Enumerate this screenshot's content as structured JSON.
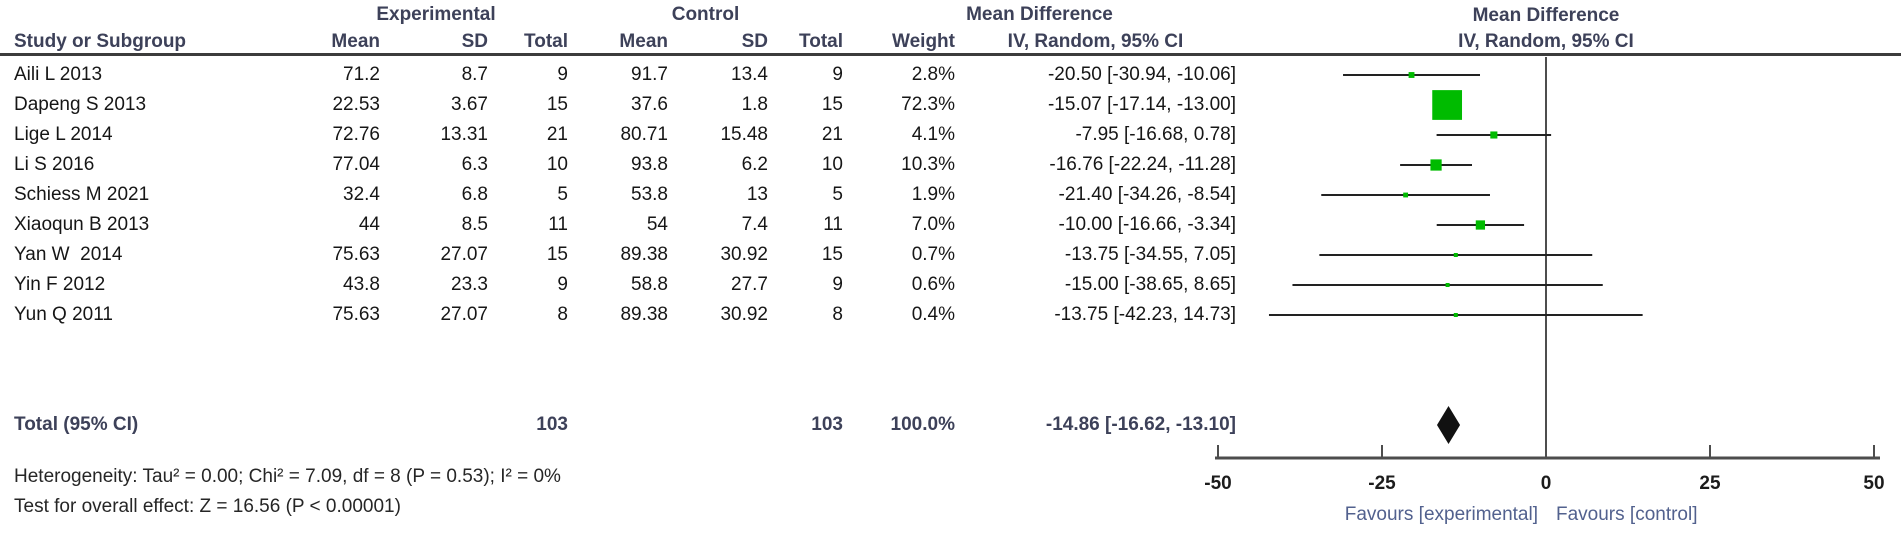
{
  "header": {
    "study_col": "Study or Subgroup",
    "group_experimental": "Experimental",
    "group_control": "Control",
    "col_mean": "Mean",
    "col_sd": "SD",
    "col_total": "Total",
    "col_weight": "Weight",
    "effect_title": "Mean Difference",
    "effect_method": "IV, Random, 95% CI"
  },
  "chart_data": {
    "type": "forest",
    "effect_measure": "Mean Difference",
    "model": "IV, Random, 95% CI",
    "marker_color": "#00bb00",
    "diamond_color": "#111111",
    "x_axis": {
      "min": -50,
      "max": 50,
      "ticks": [
        -50,
        -25,
        0,
        25,
        50
      ],
      "zero_line": 0
    },
    "favours_left": "Favours [experimental]",
    "favours_right": "Favours [control]",
    "studies": [
      {
        "study": "Aili L 2013",
        "exp_mean": "71.2",
        "exp_sd": "8.7",
        "exp_total": "9",
        "ctl_mean": "91.7",
        "ctl_sd": "13.4",
        "ctl_total": "9",
        "weight": 2.8,
        "weight_text": "2.8%",
        "md": -20.5,
        "ci_low": -30.94,
        "ci_high": -10.06,
        "ci_text": "-20.50 [-30.94, -10.06]"
      },
      {
        "study": "Dapeng S 2013",
        "exp_mean": "22.53",
        "exp_sd": "3.67",
        "exp_total": "15",
        "ctl_mean": "37.6",
        "ctl_sd": "1.8",
        "ctl_total": "15",
        "weight": 72.3,
        "weight_text": "72.3%",
        "md": -15.07,
        "ci_low": -17.14,
        "ci_high": -13.0,
        "ci_text": "-15.07 [-17.14, -13.00]"
      },
      {
        "study": "Lige L 2014",
        "exp_mean": "72.76",
        "exp_sd": "13.31",
        "exp_total": "21",
        "ctl_mean": "80.71",
        "ctl_sd": "15.48",
        "ctl_total": "21",
        "weight": 4.1,
        "weight_text": "4.1%",
        "md": -7.95,
        "ci_low": -16.68,
        "ci_high": 0.78,
        "ci_text": "-7.95 [-16.68, 0.78]"
      },
      {
        "study": "Li S 2016",
        "exp_mean": "77.04",
        "exp_sd": "6.3",
        "exp_total": "10",
        "ctl_mean": "93.8",
        "ctl_sd": "6.2",
        "ctl_total": "10",
        "weight": 10.3,
        "weight_text": "10.3%",
        "md": -16.76,
        "ci_low": -22.24,
        "ci_high": -11.28,
        "ci_text": "-16.76 [-22.24, -11.28]"
      },
      {
        "study": "Schiess M 2021",
        "exp_mean": "32.4",
        "exp_sd": "6.8",
        "exp_total": "5",
        "ctl_mean": "53.8",
        "ctl_sd": "13",
        "ctl_total": "5",
        "weight": 1.9,
        "weight_text": "1.9%",
        "md": -21.4,
        "ci_low": -34.26,
        "ci_high": -8.54,
        "ci_text": "-21.40 [-34.26, -8.54]"
      },
      {
        "study": "Xiaoqun B 2013",
        "exp_mean": "44",
        "exp_sd": "8.5",
        "exp_total": "11",
        "ctl_mean": "54",
        "ctl_sd": "7.4",
        "ctl_total": "11",
        "weight": 7.0,
        "weight_text": "7.0%",
        "md": -10.0,
        "ci_low": -16.66,
        "ci_high": -3.34,
        "ci_text": "-10.00 [-16.66, -3.34]"
      },
      {
        "study": "Yan W  2014",
        "exp_mean": "75.63",
        "exp_sd": "27.07",
        "exp_total": "15",
        "ctl_mean": "89.38",
        "ctl_sd": "30.92",
        "ctl_total": "15",
        "weight": 0.7,
        "weight_text": "0.7%",
        "md": -13.75,
        "ci_low": -34.55,
        "ci_high": 7.05,
        "ci_text": "-13.75 [-34.55, 7.05]"
      },
      {
        "study": "Yin F 2012",
        "exp_mean": "43.8",
        "exp_sd": "23.3",
        "exp_total": "9",
        "ctl_mean": "58.8",
        "ctl_sd": "27.7",
        "ctl_total": "9",
        "weight": 0.6,
        "weight_text": "0.6%",
        "md": -15.0,
        "ci_low": -38.65,
        "ci_high": 8.65,
        "ci_text": "-15.00 [-38.65, 8.65]"
      },
      {
        "study": "Yun Q 2011",
        "exp_mean": "75.63",
        "exp_sd": "27.07",
        "exp_total": "8",
        "ctl_mean": "89.38",
        "ctl_sd": "30.92",
        "ctl_total": "8",
        "weight": 0.4,
        "weight_text": "0.4%",
        "md": -13.75,
        "ci_low": -42.23,
        "ci_high": 14.73,
        "ci_text": "-13.75 [-42.23, 14.73]"
      }
    ],
    "total": {
      "label": "Total (95% CI)",
      "exp_total": "103",
      "ctl_total": "103",
      "weight_text": "100.0%",
      "md": -14.86,
      "ci_low": -16.62,
      "ci_high": -13.1,
      "ci_text": "-14.86 [-16.62, -13.10]"
    },
    "footer": {
      "heterogeneity": "Heterogeneity: Tau² = 0.00; Chi² = 7.09, df = 8 (P = 0.53); I² = 0%",
      "overall_effect": "Test for overall effect: Z = 16.56 (P < 0.00001)"
    }
  }
}
